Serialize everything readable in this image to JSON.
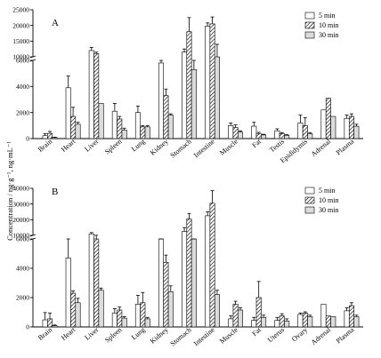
{
  "figure": {
    "y_axis_title": "Concentration / ng·g⁻¹, ng·mL⁻¹"
  },
  "colors": {
    "s5": "#ffffff",
    "s10": "hatch",
    "s30": "#dcdcdc"
  },
  "chart_data": [
    {
      "type": "bar",
      "panel_label": "A",
      "ylabel": "Concentration / ng·g⁻¹, ng·mL⁻¹",
      "y_scale": "broken",
      "lower_range": [
        0,
        6000
      ],
      "upper_range": [
        10000,
        25000
      ],
      "lower_ticks": [
        "0",
        "2000",
        "4000",
        "6000"
      ],
      "upper_ticks": [
        "10000",
        "15000",
        "20000",
        "25000"
      ],
      "legend_position": "top-right",
      "categories": [
        "Brain",
        "Heart",
        "Liver",
        "Spleen",
        "Lung",
        "Kidney",
        "Stomach",
        "Intestine",
        "Muscle",
        "Fat",
        "Testis",
        "Epididymis",
        "Adrenal",
        "Plasma"
      ],
      "series": [
        {
          "name": "5 min",
          "values": [
            220,
            3900,
            12000,
            2100,
            2000,
            5800,
            11500,
            19800,
            1000,
            950,
            600,
            1200,
            2200,
            1550
          ],
          "errors": [
            150,
            900,
            1000,
            600,
            500,
            1000,
            1000,
            1000,
            200,
            300,
            150,
            600,
            0,
            250
          ]
        },
        {
          "name": "10 min",
          "values": [
            400,
            1700,
            11000,
            1500,
            900,
            3300,
            18000,
            20500,
            850,
            380,
            380,
            1000,
            3100,
            1700
          ],
          "errors": [
            150,
            700,
            500,
            200,
            100,
            500,
            4500,
            2200,
            200,
            100,
            80,
            600,
            0,
            200
          ]
        },
        {
          "name": "30 min",
          "values": [
            80,
            1100,
            2700,
            650,
            900,
            1800,
            5300,
            10000,
            500,
            280,
            250,
            380,
            1700,
            950
          ],
          "errors": [
            30,
            150,
            0,
            150,
            100,
            100,
            4500,
            4000,
            100,
            50,
            50,
            80,
            0,
            150
          ]
        }
      ]
    },
    {
      "type": "bar",
      "panel_label": "B",
      "ylabel": "Concentration / ng·g⁻¹, ng·mL⁻¹",
      "y_scale": "broken",
      "lower_range": [
        0,
        6000
      ],
      "upper_range": [
        10000,
        40000
      ],
      "lower_ticks": [
        "0",
        "2000",
        "4000",
        "6000"
      ],
      "upper_ticks": [
        "10000",
        "20000",
        "30000",
        "40000"
      ],
      "legend_position": "top-right",
      "categories": [
        "Brain",
        "Heart",
        "Liver",
        "Spleen",
        "Lung",
        "Kidney",
        "Stomach",
        "Intestine",
        "Muscle",
        "Fat",
        "Uterus",
        "Ovary",
        "Adrenal",
        "Plasma"
      ],
      "series": [
        {
          "name": "5 min",
          "values": [
            480,
            4700,
            11000,
            950,
            1550,
            6500,
            12500,
            22500,
            550,
            450,
            450,
            850,
            1550,
            1100
          ],
          "errors": [
            500,
            2300,
            800,
            300,
            600,
            600,
            2500,
            2500,
            200,
            200,
            200,
            100,
            0,
            200
          ]
        },
        {
          "name": "10 min",
          "values": [
            550,
            2300,
            9500,
            1150,
            1650,
            4400,
            20500,
            30500,
            1550,
            2000,
            750,
            950,
            750,
            1450
          ],
          "errors": [
            400,
            150,
            600,
            200,
            700,
            500,
            3500,
            8000,
            200,
            1100,
            150,
            80,
            0,
            200
          ]
        },
        {
          "name": "30 min",
          "values": [
            80,
            1650,
            2500,
            600,
            550,
            2400,
            6000,
            2200,
            1150,
            650,
            400,
            700,
            700,
            700
          ],
          "errors": [
            50,
            300,
            150,
            100,
            100,
            400,
            300,
            300,
            150,
            150,
            150,
            100,
            0,
            100
          ]
        }
      ]
    }
  ]
}
